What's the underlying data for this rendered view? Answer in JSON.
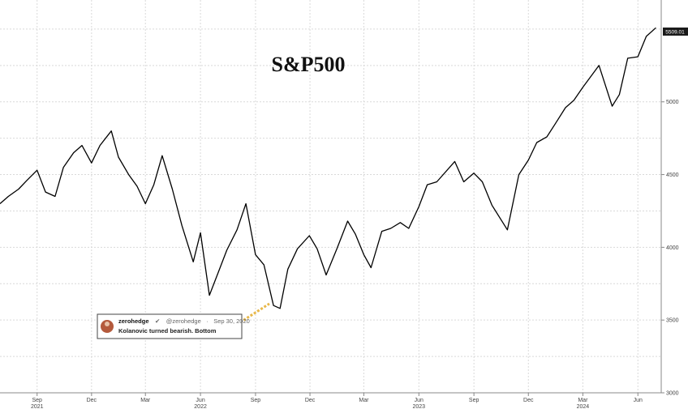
{
  "chart_data": {
    "type": "line",
    "title": "S&P500",
    "xlabel": "",
    "ylabel": "",
    "ylim": [
      3000,
      5700
    ],
    "yticks": [
      3000,
      3500,
      4000,
      4500,
      5000
    ],
    "ytick_labels": [
      "3000",
      "3500",
      "4000",
      "4500",
      "5000"
    ],
    "grid": true,
    "last_value_label": "5509.01",
    "x_month_ticks": [
      {
        "date": "2021-09-01",
        "label": "Sep"
      },
      {
        "date": "2021-12-01",
        "label": "Dec"
      },
      {
        "date": "2022-03-01",
        "label": "Mar"
      },
      {
        "date": "2022-06-01",
        "label": "Jun"
      },
      {
        "date": "2022-09-01",
        "label": "Sep"
      },
      {
        "date": "2022-12-01",
        "label": "Dec"
      },
      {
        "date": "2023-03-01",
        "label": "Mar"
      },
      {
        "date": "2023-06-01",
        "label": "Jun"
      },
      {
        "date": "2023-09-01",
        "label": "Sep"
      },
      {
        "date": "2023-12-01",
        "label": "Dec"
      },
      {
        "date": "2024-03-01",
        "label": "Mar"
      },
      {
        "date": "2024-06-01",
        "label": "Jun"
      }
    ],
    "x_year_ticks": [
      {
        "date": "2021-09-01",
        "label": "2021"
      },
      {
        "date": "2022-06-01",
        "label": "2022"
      },
      {
        "date": "2023-06-01",
        "label": "2023"
      },
      {
        "date": "2024-03-01",
        "label": "2024"
      }
    ],
    "series": [
      {
        "color": "#000000",
        "x": [
          "2021-07-01",
          "2021-07-15",
          "2021-08-01",
          "2021-08-15",
          "2021-09-01",
          "2021-09-15",
          "2021-10-01",
          "2021-10-15",
          "2021-11-01",
          "2021-11-15",
          "2021-12-01",
          "2021-12-15",
          "2022-01-03",
          "2022-01-15",
          "2022-02-01",
          "2022-02-15",
          "2022-03-01",
          "2022-03-15",
          "2022-03-29",
          "2022-04-15",
          "2022-05-01",
          "2022-05-20",
          "2022-06-01",
          "2022-06-16",
          "2022-07-01",
          "2022-07-15",
          "2022-08-01",
          "2022-08-16",
          "2022-09-01",
          "2022-09-15",
          "2022-10-01",
          "2022-10-12",
          "2022-10-25",
          "2022-11-10",
          "2022-11-30",
          "2022-12-13",
          "2022-12-28",
          "2023-01-15",
          "2023-02-02",
          "2023-02-15",
          "2023-03-01",
          "2023-03-13",
          "2023-03-31",
          "2023-04-15",
          "2023-05-01",
          "2023-05-15",
          "2023-06-01",
          "2023-06-15",
          "2023-07-01",
          "2023-07-31",
          "2023-08-15",
          "2023-09-01",
          "2023-09-15",
          "2023-10-01",
          "2023-10-27",
          "2023-11-15",
          "2023-12-01",
          "2023-12-15",
          "2024-01-01",
          "2024-01-15",
          "2024-02-01",
          "2024-02-15",
          "2024-03-01",
          "2024-03-28",
          "2024-04-19",
          "2024-05-01",
          "2024-05-15",
          "2024-06-01",
          "2024-06-15",
          "2024-07-01"
        ],
        "y": [
          4300,
          4350,
          4400,
          4460,
          4530,
          4380,
          4350,
          4550,
          4650,
          4700,
          4580,
          4700,
          4800,
          4620,
          4500,
          4420,
          4300,
          4430,
          4630,
          4400,
          4150,
          3900,
          4100,
          3670,
          3830,
          3980,
          4120,
          4300,
          3950,
          3880,
          3600,
          3580,
          3850,
          3990,
          4080,
          3990,
          3810,
          3990,
          4180,
          4090,
          3950,
          3860,
          4110,
          4130,
          4170,
          4130,
          4280,
          4430,
          4450,
          4590,
          4450,
          4510,
          4450,
          4290,
          4120,
          4500,
          4600,
          4720,
          4760,
          4850,
          4960,
          5010,
          5100,
          5250,
          4970,
          5050,
          5300,
          5310,
          5450,
          5509
        ]
      }
    ]
  },
  "annotation": {
    "handle_name": "zerohedge",
    "handle": "@zerohedge",
    "date": "Sep 30, 2020",
    "text": "Kolanovic turned bearish. Bottom"
  }
}
